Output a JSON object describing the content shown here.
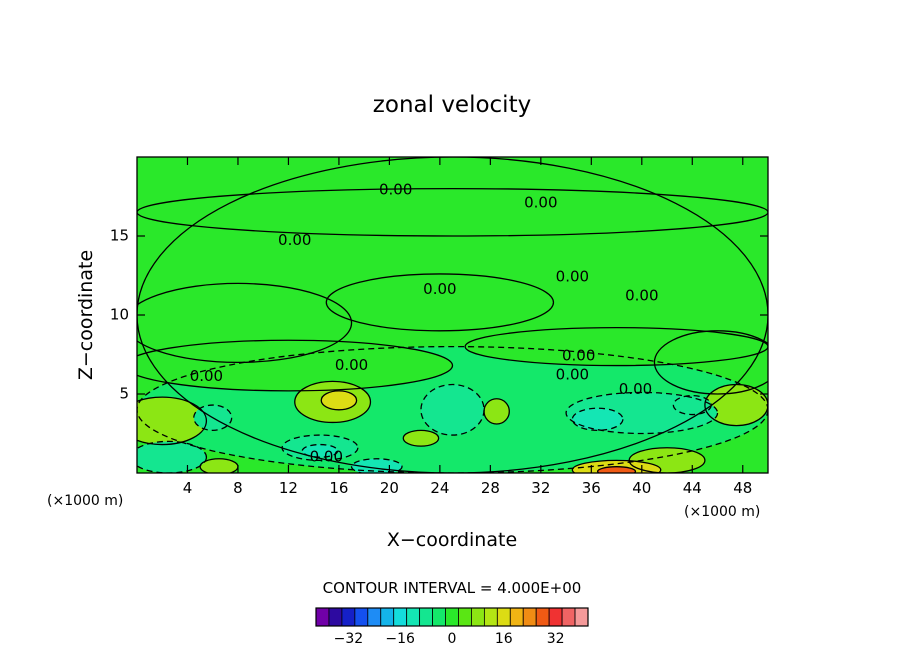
{
  "chart_data": {
    "type": "heatmap",
    "title": "zonal velocity",
    "xlabel": "X−coordinate",
    "ylabel": "Z−coordinate",
    "x_unit_left": "(×1000 m)",
    "x_unit_right": "(×1000 m)",
    "xlim": [
      0,
      50
    ],
    "ylim": [
      0,
      20
    ],
    "x_ticks": [
      "4",
      "8",
      "12",
      "16",
      "20",
      "24",
      "28",
      "32",
      "36",
      "40",
      "44",
      "48"
    ],
    "y_ticks": [
      "5",
      "10",
      "15"
    ],
    "contour_interval_text": "CONTOUR INTERVAL = 4.000E+00",
    "contour_label": "0.00",
    "colorbar": {
      "levels": [
        -40,
        -36,
        -32,
        -28,
        -24,
        -20,
        -16,
        -12,
        -8,
        -4,
        0,
        4,
        8,
        12,
        16,
        20,
        24,
        28,
        32,
        36,
        40
      ],
      "colors": [
        "#7000a8",
        "#2d0aa0",
        "#1520c8",
        "#1450f0",
        "#1e8cf5",
        "#14b4ea",
        "#14dcdc",
        "#14e6b4",
        "#14e690",
        "#14e86a",
        "#2ae82a",
        "#5ae614",
        "#8ce614",
        "#b4e614",
        "#dcdc14",
        "#f0b414",
        "#f08c14",
        "#f05a14",
        "#f03232",
        "#f06464",
        "#f59a9a"
      ],
      "tick_labels": [
        "−32",
        "−16",
        "0",
        "16",
        "32"
      ],
      "tick_values": [
        -32,
        -16,
        0,
        16,
        32
      ]
    },
    "regions": [
      {
        "x": 25,
        "y": 10,
        "rx": 25,
        "ry": 10,
        "value": 0
      },
      {
        "x": 25,
        "y": 16.5,
        "rx": 25,
        "ry": 1.5,
        "value": 0
      },
      {
        "x": 8,
        "y": 9.5,
        "rx": 9,
        "ry": 2.5,
        "value": 0
      },
      {
        "x": 24,
        "y": 10.8,
        "rx": 9,
        "ry": 1.8,
        "value": 0
      },
      {
        "x": 46,
        "y": 7,
        "rx": 5,
        "ry": 2,
        "value": 0
      },
      {
        "x": 25,
        "y": 4,
        "rx": 25,
        "ry": 4,
        "value": -4
      },
      {
        "x": 12,
        "y": 6.8,
        "rx": 13,
        "ry": 1.6,
        "value": 0
      },
      {
        "x": 38,
        "y": 8,
        "rx": 12,
        "ry": 1.2,
        "value": 0
      },
      {
        "x": 2,
        "y": 3.3,
        "rx": 3.5,
        "ry": 1.5,
        "value": 8
      },
      {
        "x": 15.5,
        "y": 4.5,
        "rx": 3,
        "ry": 1.3,
        "value": 8
      },
      {
        "x": 16,
        "y": 4.6,
        "rx": 1.4,
        "ry": 0.6,
        "value": 16
      },
      {
        "x": 22.5,
        "y": 2.2,
        "rx": 1.4,
        "ry": 0.5,
        "value": 8
      },
      {
        "x": 28.5,
        "y": 3.9,
        "rx": 1,
        "ry": 0.8,
        "value": 8
      },
      {
        "x": 47.5,
        "y": 4.3,
        "rx": 2.5,
        "ry": 1.3,
        "value": 8
      },
      {
        "x": 6.5,
        "y": 0.4,
        "rx": 1.5,
        "ry": 0.5,
        "value": 8
      },
      {
        "x": 42,
        "y": 0.8,
        "rx": 3,
        "ry": 0.8,
        "value": 8
      },
      {
        "x": 38,
        "y": 0.2,
        "rx": 3.5,
        "ry": 0.6,
        "value": 16
      },
      {
        "x": 38,
        "y": 0.1,
        "rx": 1.5,
        "ry": 0.3,
        "value": 28
      },
      {
        "x": 40,
        "y": 3.8,
        "rx": 6,
        "ry": 1.3,
        "value": -8
      },
      {
        "x": 36.5,
        "y": 3.4,
        "rx": 2,
        "ry": 0.7,
        "value": -12
      },
      {
        "x": 14.5,
        "y": 1.6,
        "rx": 3,
        "ry": 0.8,
        "value": -8
      },
      {
        "x": 14.5,
        "y": 1.4,
        "rx": 1.4,
        "ry": 0.4,
        "value": -12
      },
      {
        "x": 25,
        "y": 4,
        "rx": 2.5,
        "ry": 1.6,
        "value": -8
      },
      {
        "x": 6,
        "y": 3.5,
        "rx": 1.5,
        "ry": 0.8,
        "value": -8
      },
      {
        "x": 2.5,
        "y": 1,
        "rx": 3,
        "ry": 1,
        "value": -8
      },
      {
        "x": 19,
        "y": 0.4,
        "rx": 2,
        "ry": 0.5,
        "value": -12
      },
      {
        "x": 44,
        "y": 4.3,
        "rx": 1.5,
        "ry": 0.6,
        "value": -8
      }
    ],
    "contour_label_positions": [
      {
        "x": 20.5,
        "y": 17.9
      },
      {
        "x": 32,
        "y": 17.1
      },
      {
        "x": 12.5,
        "y": 14.7
      },
      {
        "x": 34.5,
        "y": 12.4
      },
      {
        "x": 24,
        "y": 11.6
      },
      {
        "x": 40,
        "y": 11.2
      },
      {
        "x": 17,
        "y": 6.8
      },
      {
        "x": 5.5,
        "y": 6.1
      },
      {
        "x": 35,
        "y": 7.4
      },
      {
        "x": 34.5,
        "y": 6.2
      },
      {
        "x": 39.5,
        "y": 5.3
      },
      {
        "x": 15,
        "y": 1
      }
    ]
  }
}
